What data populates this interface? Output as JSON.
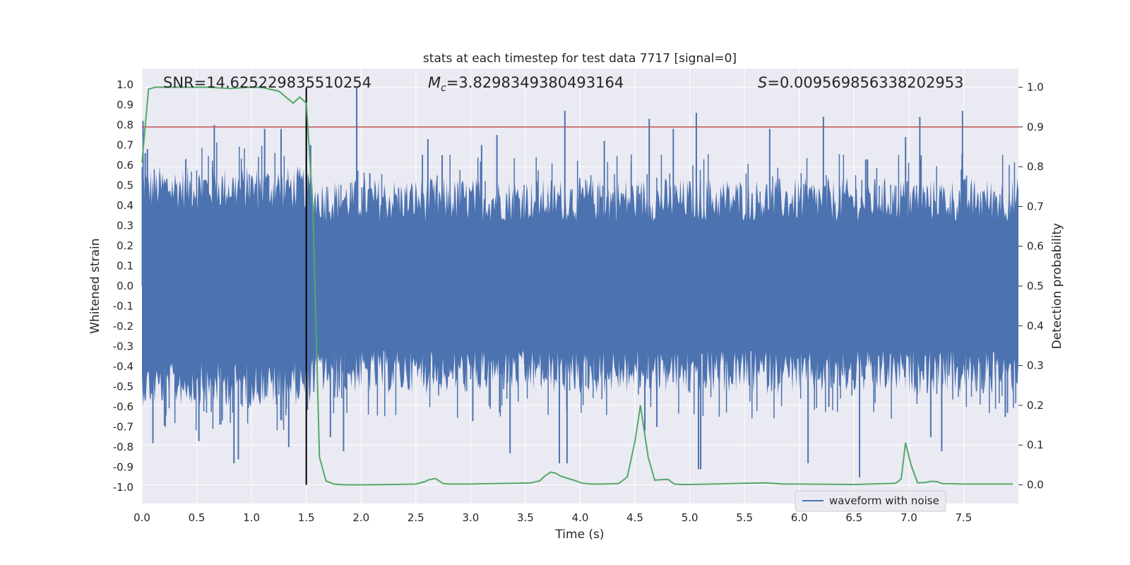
{
  "chart_data": {
    "type": "line",
    "title": "stats at each timestep for test data 7717 [signal=0]",
    "xlabel": "Time (s)",
    "ylabel": "Whitened strain",
    "y2label": "Detection probability",
    "xlim": [
      0.0,
      8.0
    ],
    "ylim": [
      -1.08,
      1.08
    ],
    "y2lim": [
      -0.047,
      1.047
    ],
    "xticks": [
      0.0,
      0.5,
      1.0,
      1.5,
      2.0,
      2.5,
      3.0,
      3.5,
      4.0,
      4.5,
      5.0,
      5.5,
      6.0,
      6.5,
      7.0,
      7.5
    ],
    "xtick_labels": [
      "0.0",
      "0.5",
      "1.0",
      "1.5",
      "2.0",
      "2.5",
      "3.0",
      "3.5",
      "4.0",
      "4.5",
      "5.0",
      "5.5",
      "6.0",
      "6.5",
      "7.0",
      "7.5"
    ],
    "yticks": [
      1.0,
      0.9,
      0.8,
      0.7,
      0.6,
      0.5,
      0.4,
      0.3,
      0.2,
      0.1,
      0.0,
      -0.1,
      -0.2,
      -0.3,
      -0.4,
      -0.5,
      -0.6,
      -0.7,
      -0.8,
      -0.9,
      -1.0
    ],
    "ytick_labels": [
      "1.0",
      "0.9",
      "0.8",
      "0.7",
      "0.6",
      "0.5",
      "0.4",
      "0.3",
      "0.2",
      "0.1",
      "0.0",
      "-0.1",
      "-0.2",
      "-0.3",
      "-0.4",
      "-0.5",
      "-0.6",
      "-0.7",
      "-0.8",
      "-0.9",
      "-1.0"
    ],
    "y2ticks": [
      1.0,
      0.9,
      0.8,
      0.7,
      0.6,
      0.5,
      0.4,
      0.3,
      0.2,
      0.1,
      0.0
    ],
    "y2tick_labels": [
      "1.0",
      "0.9",
      "0.8",
      "0.7",
      "0.6",
      "0.5",
      "0.4",
      "0.3",
      "0.2",
      "0.1",
      "0.0"
    ],
    "grid": true,
    "annotations": {
      "snr": "SNR=14.625229835510254",
      "mc_symbol": "M",
      "mc_sub": "c",
      "mc_value": "=3.8298349380493164",
      "s_symbol": "S",
      "s_value": "=0.009569856338202953"
    },
    "threshold": {
      "value": 0.9,
      "axis": "y2",
      "color": "#c44e52"
    },
    "marker_line": {
      "x": 1.5,
      "color": "#000000"
    },
    "legend": {
      "label": "waveform with noise",
      "location": "lower-right"
    },
    "series": [
      {
        "name": "waveform with noise",
        "axis": "y",
        "color": "#4c72b0",
        "envelope": {
          "x": [
            0.0,
            1.5,
            1.6,
            8.0
          ],
          "upper": [
            0.5,
            0.5,
            0.44,
            0.44
          ],
          "lower": [
            -0.5,
            -0.5,
            -0.44,
            -0.44
          ]
        },
        "peaks": [
          {
            "x": 0.01,
            "y": 0.82
          },
          {
            "x": 0.03,
            "y": 0.66
          },
          {
            "x": 0.05,
            "y": 0.68
          },
          {
            "x": 0.1,
            "y": -0.78
          },
          {
            "x": 0.4,
            "y": 0.63
          },
          {
            "x": 0.52,
            "y": -0.77
          },
          {
            "x": 0.66,
            "y": 0.8
          },
          {
            "x": 0.84,
            "y": -0.88
          },
          {
            "x": 0.88,
            "y": -0.86
          },
          {
            "x": 1.12,
            "y": 0.78
          },
          {
            "x": 1.27,
            "y": 0.78
          },
          {
            "x": 1.34,
            "y": -0.8
          },
          {
            "x": 1.5,
            "y": 0.83
          },
          {
            "x": 1.54,
            "y": 0.7
          },
          {
            "x": 1.72,
            "y": -0.75
          },
          {
            "x": 1.84,
            "y": -0.82
          },
          {
            "x": 1.96,
            "y": 0.99
          },
          {
            "x": 2.08,
            "y": 0.56
          },
          {
            "x": 2.61,
            "y": 0.73
          },
          {
            "x": 2.74,
            "y": 0.65
          },
          {
            "x": 3.02,
            "y": -0.67
          },
          {
            "x": 3.1,
            "y": 0.7
          },
          {
            "x": 3.24,
            "y": 0.75
          },
          {
            "x": 3.36,
            "y": -0.83
          },
          {
            "x": 3.81,
            "y": -0.88
          },
          {
            "x": 3.86,
            "y": 0.87
          },
          {
            "x": 3.88,
            "y": -0.88
          },
          {
            "x": 4.22,
            "y": 0.72
          },
          {
            "x": 4.59,
            "y": -0.72
          },
          {
            "x": 4.63,
            "y": 0.83
          },
          {
            "x": 4.7,
            "y": -0.7
          },
          {
            "x": 4.85,
            "y": 0.78
          },
          {
            "x": 5.06,
            "y": 0.86
          },
          {
            "x": 5.08,
            "y": -0.91
          },
          {
            "x": 5.1,
            "y": -0.91
          },
          {
            "x": 5.73,
            "y": 0.78
          },
          {
            "x": 6.08,
            "y": -0.88
          },
          {
            "x": 6.22,
            "y": 0.84
          },
          {
            "x": 6.27,
            "y": -0.6
          },
          {
            "x": 6.55,
            "y": -0.95
          },
          {
            "x": 6.97,
            "y": 0.74
          },
          {
            "x": 7.1,
            "y": 0.84
          },
          {
            "x": 7.2,
            "y": -0.75
          },
          {
            "x": 7.3,
            "y": -0.82
          },
          {
            "x": 7.49,
            "y": 0.87
          },
          {
            "x": 7.88,
            "y": -0.65
          },
          {
            "x": 7.9,
            "y": -0.63
          }
        ]
      },
      {
        "name": "detection probability",
        "axis": "y2",
        "color": "#55a868",
        "x": [
          0.0,
          0.06,
          0.12,
          0.2,
          0.4,
          0.6,
          0.8,
          1.0,
          1.1,
          1.25,
          1.38,
          1.44,
          1.5,
          1.56,
          1.62,
          1.68,
          1.75,
          1.85,
          2.0,
          2.3,
          2.5,
          2.58,
          2.62,
          2.68,
          2.75,
          2.82,
          3.0,
          3.2,
          3.4,
          3.55,
          3.63,
          3.68,
          3.73,
          3.78,
          3.82,
          3.88,
          3.95,
          4.02,
          4.1,
          4.2,
          4.35,
          4.43,
          4.5,
          4.55,
          4.62,
          4.68,
          4.74,
          4.8,
          4.86,
          4.92,
          5.0,
          5.2,
          5.5,
          5.7,
          5.85,
          6.0,
          6.5,
          6.8,
          6.88,
          6.93,
          6.97,
          7.02,
          7.08,
          7.15,
          7.2,
          7.26,
          7.3,
          7.5,
          7.95
        ],
        "y": [
          0.81,
          0.995,
          1.0,
          1.0,
          1.0,
          1.0,
          0.997,
          1.0,
          0.999,
          0.99,
          0.96,
          0.975,
          0.96,
          0.7,
          0.07,
          0.01,
          0.002,
          0.0,
          0.0,
          0.001,
          0.002,
          0.008,
          0.013,
          0.016,
          0.003,
          0.002,
          0.002,
          0.003,
          0.004,
          0.005,
          0.01,
          0.023,
          0.032,
          0.029,
          0.022,
          0.017,
          0.011,
          0.004,
          0.002,
          0.002,
          0.003,
          0.02,
          0.11,
          0.2,
          0.07,
          0.012,
          0.013,
          0.014,
          0.002,
          0.001,
          0.001,
          0.002,
          0.004,
          0.005,
          0.002,
          0.002,
          0.001,
          0.003,
          0.004,
          0.015,
          0.106,
          0.05,
          0.005,
          0.006,
          0.009,
          0.008,
          0.003,
          0.002,
          0.002
        ]
      }
    ]
  }
}
